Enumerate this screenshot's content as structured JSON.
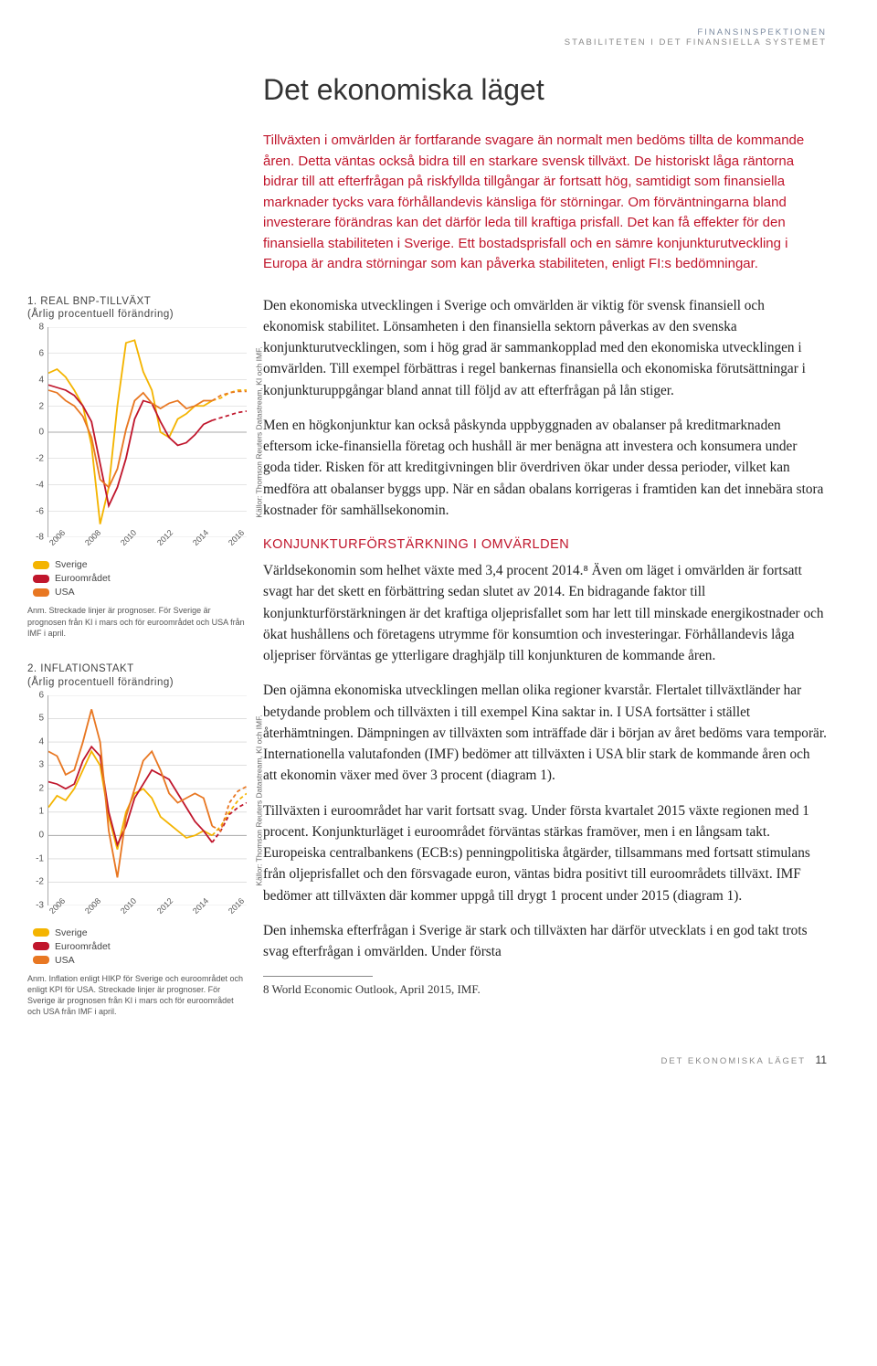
{
  "header": {
    "line1": "FINANSINSPEKTIONEN",
    "line2": "STABILITETEN I DET FINANSIELLA SYSTEMET"
  },
  "title": "Det ekonomiska läget",
  "intro": "Tillväxten i omvärlden är fortfarande svagare än normalt men bedöms tillta de kommande åren. Detta väntas också bidra till en starkare svensk tillväxt. De historiskt låga räntorna bidrar till att efterfrågan på riskfyllda tillgångar är fortsatt hög, samtidigt som finansiella marknader tycks vara förhållandevis känsliga för störningar. Om förväntningarna bland investerare förändras kan det därför leda till kraftiga prisfall. Det kan få effekter för den finansiella stabiliteten i Sverige. Ett bostadsprisfall och en sämre konjunkturutveckling i Europa är andra störningar som kan påverka stabiliteten, enligt FI:s bedömningar.",
  "body": {
    "p1": "Den ekonomiska utvecklingen i Sverige och omvärlden är viktig för svensk finansiell och ekonomisk stabilitet. Lönsamheten i den finansiella sektorn påverkas av den svenska konjunkturutvecklingen, som i hög grad är sammankopplad med den ekonomiska utvecklingen i omvärlden. Till exempel förbättras i regel bankernas finansiella och ekonomiska förutsättningar i konjunkturuppgångar bland annat till följd av att efterfrågan på lån stiger.",
    "p2": "Men en högkonjunktur kan också påskynda uppbyggnaden av obalanser på kreditmarknaden eftersom icke-finansiella företag och hushåll är mer benägna att investera och konsumera under goda tider. Risken för att kreditgivningen blir överdriven ökar under dessa perioder, vilket kan medföra att obalanser byggs upp. När en sådan obalans korrigeras i framtiden kan det innebära stora kostnader för samhällsekonomin.",
    "h1": "KONJUNKTURFÖRSTÄRKNING I OMVÄRLDEN",
    "p3": "Världsekonomin som helhet växte med 3,4 procent 2014.⁸ Även om läget i omvärlden är fortsatt svagt har det skett en förbättring sedan slutet av 2014. En bidragande faktor till konjunkturförstärkningen är det kraftiga oljeprisfallet som har lett till minskade energikostnader och ökat hushållens och företagens utrymme för konsumtion och investeringar. Förhållandevis låga oljepriser förväntas ge ytterligare draghjälp till konjunkturen de kommande åren.",
    "p4": "Den ojämna ekonomiska utvecklingen mellan olika regioner kvarstår. Flertalet tillväxtländer har betydande problem och tillväxten i till exempel Kina saktar in. I USA fortsätter i stället återhämtningen. Dämpningen av tillväxten som inträffade där i början av året bedöms vara temporär. Internationella valutafonden (IMF) bedömer att tillväxten i USA blir stark de kommande åren och att ekonomin växer med över 3 procent (diagram 1).",
    "p5": "Tillväxten i euroområdet har varit fortsatt svag. Under första kvartalet 2015 växte regionen med 1 procent. Konjunkturläget i euroområdet förväntas stärkas framöver, men i en långsam takt. Europeiska centralbankens (ECB:s) penningpolitiska åtgärder, tillsammans med fortsatt stimulans från oljeprisfallet och den försvagade euron, väntas bidra positivt till euroområdets tillväxt. IMF bedömer att tillväxten där kommer uppgå till drygt 1 procent under 2015 (diagram 1).",
    "p6": "Den inhemska efterfrågan i Sverige är stark och tillväxten har därför utvecklats i en god takt trots svag efterfrågan i omvärlden. Under första"
  },
  "footnote": "8  World Economic Outlook, April 2015, IMF.",
  "footer": {
    "label": "DET EKONOMISKA LÄGET",
    "page": "11"
  },
  "chart1": {
    "title_num": "1. REAL BNP-TILLVÄXT",
    "subtitle": "(Årlig procentuell förändring)",
    "y_ticks": [
      "8",
      "6",
      "4",
      "2",
      "0",
      "-2",
      "-4",
      "-6",
      "-8"
    ],
    "ymin": -8,
    "ymax": 8,
    "x_ticks": [
      "2006",
      "2008",
      "2010",
      "2012",
      "2014",
      "2016"
    ],
    "source": "Källor: Thomson Reuters Datastream, KI och IMF.",
    "legend": [
      {
        "label": "Sverige",
        "color": "#f4b400"
      },
      {
        "label": "Euroområdet",
        "color": "#c0162c"
      },
      {
        "label": "USA",
        "color": "#e87722"
      }
    ],
    "note": "Anm. Streckade linjer är prognoser. För Sverige är prognosen från KI i mars och för euroområdet och USA från IMF i april.",
    "series": {
      "sverige": {
        "color": "#f4b400",
        "values": [
          4.5,
          4.8,
          4.2,
          3.2,
          2.0,
          -1.0,
          -7.0,
          -4.2,
          2.0,
          6.8,
          7.0,
          4.6,
          3.2,
          0.0,
          -0.4,
          1.0,
          1.4,
          2.0,
          2.0,
          2.4
        ],
        "dash_from": 17,
        "forecast": [
          2.6,
          3.0,
          3.2,
          3.2
        ]
      },
      "euro": {
        "color": "#c0162c",
        "values": [
          3.6,
          3.4,
          3.2,
          2.8,
          2.0,
          0.8,
          -2.4,
          -5.6,
          -4.2,
          -2.0,
          1.0,
          2.4,
          2.2,
          0.8,
          -0.4,
          -1.0,
          -0.8,
          -0.2,
          0.6,
          0.9
        ],
        "dash_from": 17,
        "forecast": [
          1.1,
          1.3,
          1.5,
          1.6
        ]
      },
      "usa": {
        "color": "#e87722",
        "values": [
          3.2,
          3.0,
          2.4,
          2.0,
          1.2,
          -0.4,
          -3.6,
          -4.2,
          -2.8,
          0.2,
          2.4,
          3.0,
          2.2,
          1.8,
          2.2,
          2.4,
          1.8,
          2.0,
          2.4,
          2.4
        ],
        "dash_from": 17,
        "forecast": [
          2.8,
          3.0,
          3.1,
          3.1
        ]
      }
    },
    "bg": "#ffffff",
    "grid_color": "#cccccc",
    "axis_color": "#aaaaaa"
  },
  "chart2": {
    "title_num": "2. INFLATIONSTAKT",
    "subtitle": "(Årlig procentuell förändring)",
    "y_ticks": [
      "6",
      "5",
      "4",
      "3",
      "2",
      "1",
      "0",
      "-1",
      "-2",
      "-3"
    ],
    "ymin": -3,
    "ymax": 6,
    "x_ticks": [
      "2006",
      "2008",
      "2010",
      "2012",
      "2014",
      "2016"
    ],
    "source": "Källor: Thomson Reuters Datastream, KI och IMF.",
    "legend": [
      {
        "label": "Sverige",
        "color": "#f4b400"
      },
      {
        "label": "Euroområdet",
        "color": "#c0162c"
      },
      {
        "label": "USA",
        "color": "#e87722"
      }
    ],
    "note": "Anm. Inflation enligt HIKP för Sverige och euroområdet och enligt KPI för USA. Streckade linjer är prognoser. För Sverige är prognosen från KI i mars och för euroområdet och USA från IMF i april.",
    "series": {
      "sverige": {
        "color": "#f4b400",
        "values": [
          1.2,
          1.7,
          1.5,
          2.0,
          2.8,
          3.6,
          3.0,
          0.8,
          -0.6,
          1.0,
          1.8,
          2.0,
          1.6,
          0.8,
          0.5,
          0.2,
          -0.1,
          0.0,
          0.2,
          0.0
        ],
        "dash_from": 17,
        "forecast": [
          0.4,
          1.0,
          1.5,
          1.8
        ]
      },
      "euro": {
        "color": "#c0162c",
        "values": [
          2.3,
          2.2,
          2.0,
          2.2,
          3.2,
          3.8,
          3.4,
          1.0,
          -0.4,
          0.4,
          1.6,
          2.2,
          2.8,
          2.6,
          2.4,
          1.8,
          1.2,
          0.6,
          0.2,
          -0.3
        ],
        "dash_from": 17,
        "forecast": [
          0.2,
          0.9,
          1.2,
          1.4
        ]
      },
      "usa": {
        "color": "#e87722",
        "values": [
          3.6,
          3.4,
          2.6,
          2.8,
          4.0,
          5.4,
          4.0,
          0.2,
          -1.8,
          0.8,
          2.0,
          3.2,
          3.6,
          2.8,
          1.8,
          1.4,
          1.6,
          1.8,
          1.6,
          0.4
        ],
        "dash_from": 17,
        "forecast": [
          0.2,
          1.4,
          1.9,
          2.1
        ]
      }
    },
    "bg": "#ffffff",
    "grid_color": "#cccccc",
    "axis_color": "#aaaaaa"
  }
}
